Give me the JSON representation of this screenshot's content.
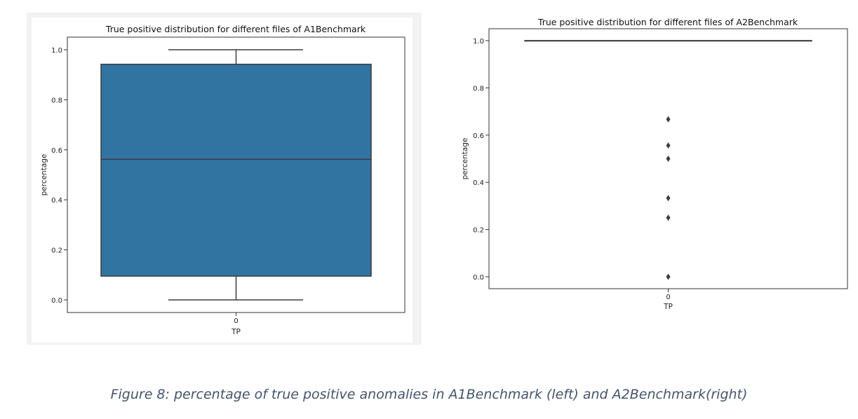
{
  "figure_caption": "Figure 8: percentage of true positive anomalies in A1Benchmark (left) and A2Benchmark(right)",
  "colors": {
    "box_fill": "#3274a1",
    "line": "#3d3d3d",
    "outlier": "#3d3d3d",
    "caption": "#44546a"
  },
  "chart_data": [
    {
      "type": "box",
      "title": "True positive distribution for different files of A1Benchmark",
      "xlabel": "TP",
      "ylabel": "percentage",
      "categories": [
        "0"
      ],
      "ylim": [
        -0.05,
        1.05
      ],
      "yticks": [
        "0.0",
        "0.2",
        "0.4",
        "0.6",
        "0.8",
        "1.0"
      ],
      "box": {
        "whisker_low": 0.0,
        "q1": 0.095,
        "median": 0.562,
        "q3": 0.942,
        "whisker_high": 1.0
      },
      "outliers": [],
      "grid": false
    },
    {
      "type": "box",
      "title": "True positive distribution for different files of A2Benchmark",
      "xlabel": "TP",
      "ylabel": "percentage",
      "categories": [
        "0"
      ],
      "ylim": [
        -0.05,
        1.05
      ],
      "yticks": [
        "0.0",
        "0.2",
        "0.4",
        "0.6",
        "0.8",
        "1.0"
      ],
      "box": {
        "whisker_low": 1.0,
        "q1": 1.0,
        "median": 1.0,
        "q3": 1.0,
        "whisker_high": 1.0
      },
      "outliers": [
        0.0,
        0.25,
        0.333,
        0.5,
        0.556,
        0.667
      ],
      "grid": false
    }
  ]
}
